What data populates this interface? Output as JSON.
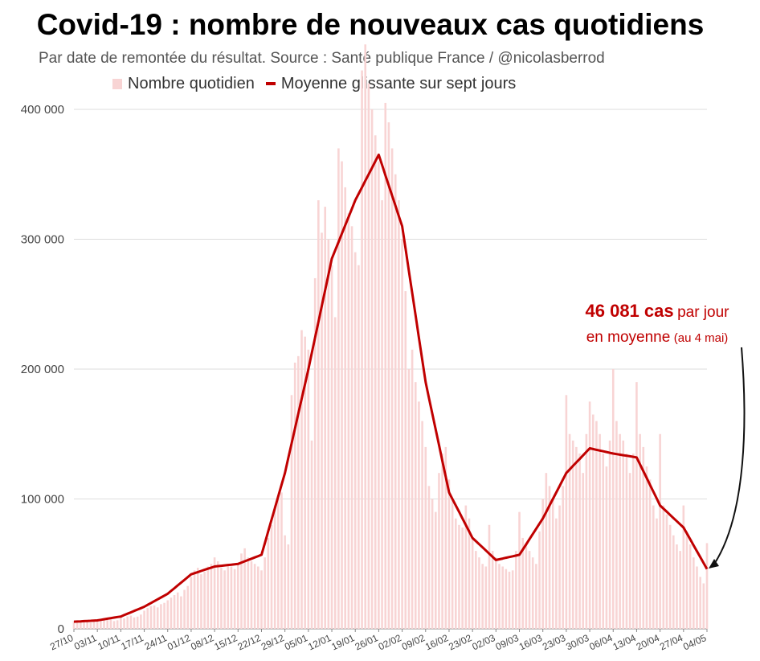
{
  "title": "Covid-19 : nombre de nouveaux cas quotidiens",
  "subtitle": "Par date de remontée du résultat. Source : Santé publique France / @nicolasberrod",
  "legend": {
    "bars": "Nombre quotidien",
    "line": "Moyenne glissante sur sept jours"
  },
  "annotation": {
    "value": "46 081 cas",
    "per_day": "par jour",
    "line2": "en moyenne",
    "date": "(au 4 mai)"
  },
  "colors": {
    "bar": "#f8d4d4",
    "line": "#c00000",
    "grid": "#dddddd"
  },
  "chart_data": {
    "type": "bar",
    "x_start": "27/10",
    "ylim": [
      0,
      400000
    ],
    "y_ticks": [
      {
        "value": 0,
        "label": "0"
      },
      {
        "value": 100000,
        "label": "100 000"
      },
      {
        "value": 200000,
        "label": "200 000"
      },
      {
        "value": 300000,
        "label": "300 000"
      },
      {
        "value": 400000,
        "label": "400 000"
      }
    ],
    "x_ticks": [
      "27/10",
      "03/11",
      "10/11",
      "17/11",
      "24/11",
      "01/12",
      "08/12",
      "15/12",
      "22/12",
      "29/12",
      "05/01",
      "12/01",
      "19/01",
      "26/01",
      "02/02",
      "09/02",
      "16/02",
      "23/02",
      "02/03",
      "09/03",
      "16/03",
      "23/03",
      "30/03",
      "06/04",
      "13/04",
      "20/04",
      "27/04",
      "04/05"
    ],
    "x_tick_step_days": 7,
    "weekly_avg": [
      5500,
      6500,
      9500,
      17000,
      27000,
      42000,
      48000,
      50000,
      57000,
      120000,
      200000,
      285000,
      330000,
      365000,
      310000,
      190000,
      105000,
      70000,
      53000,
      57000,
      85000,
      120000,
      139000,
      135000,
      132000,
      95000,
      78000,
      46081
    ],
    "series": [
      {
        "name": "Nombre quotidien",
        "values": [
          6000,
          5500,
          6200,
          5800,
          5200,
          4800,
          5600,
          6200,
          7000,
          6400,
          6800,
          7400,
          6000,
          6600,
          9000,
          8000,
          9600,
          10200,
          8800,
          9400,
          11000,
          14000,
          16000,
          17500,
          18000,
          16500,
          19000,
          20000,
          22000,
          24000,
          26000,
          28000,
          25000,
          30000,
          33000,
          40000,
          45000,
          47000,
          42000,
          44000,
          48000,
          50000,
          55000,
          52000,
          47000,
          45000,
          50000,
          48000,
          46000,
          50000,
          58000,
          62000,
          55000,
          52000,
          50000,
          48000,
          45000,
          55000,
          70000,
          80000,
          95000,
          100000,
          105000,
          72000,
          65000,
          180000,
          205000,
          210000,
          230000,
          225000,
          215000,
          145000,
          270000,
          330000,
          305000,
          325000,
          300000,
          280000,
          240000,
          370000,
          360000,
          340000,
          320000,
          310000,
          290000,
          280000,
          430000,
          450000,
          420000,
          400000,
          380000,
          360000,
          330000,
          405000,
          390000,
          370000,
          350000,
          330000,
          300000,
          260000,
          200000,
          215000,
          190000,
          175000,
          160000,
          140000,
          110000,
          100000,
          90000,
          120000,
          135000,
          140000,
          115000,
          100000,
          85000,
          80000,
          78000,
          95000,
          85000,
          70000,
          60000,
          55000,
          50000,
          48000,
          80000,
          60000,
          55000,
          50000,
          48000,
          46000,
          44000,
          45000,
          60000,
          90000,
          70000,
          65000,
          60000,
          55000,
          50000,
          75000,
          100000,
          120000,
          110000,
          100000,
          85000,
          95000,
          110000,
          180000,
          150000,
          145000,
          140000,
          135000,
          120000,
          150000,
          175000,
          165000,
          160000,
          150000,
          135000,
          125000,
          145000,
          200000,
          160000,
          150000,
          145000,
          135000,
          120000,
          135000,
          190000,
          150000,
          140000,
          125000,
          115000,
          95000,
          85000,
          150000,
          95000,
          88000,
          80000,
          72000,
          65000,
          60000,
          95000,
          75000,
          65000,
          55000,
          48000,
          40000,
          35000,
          66000
        ]
      },
      {
        "name": "Moyenne glissante sur sept jours",
        "values": []
      }
    ]
  }
}
